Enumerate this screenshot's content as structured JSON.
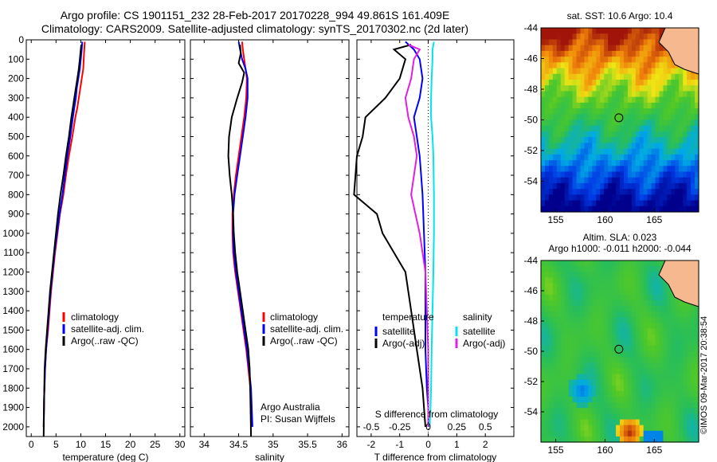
{
  "header": {
    "line1": "Argo profile: CS 1901151_232 28-Feb-2017 20170228_994 49.861S 161.409E",
    "line2": "Climatology: CARS2009. Satellite-adjusted climatology: synTS_20170302.nc (2d later)"
  },
  "colors": {
    "climatology": "#ff0000",
    "satellite": "#0000ff",
    "argo": "#000000",
    "sal_satellite": "#00e5ee",
    "sal_argo": "#e020e0",
    "land": "#f6b98f"
  },
  "chart_data": [
    {
      "type": "line",
      "name": "temperature",
      "xlabel": "temperature (deg C)",
      "ylabel": "",
      "xlim": [
        -1,
        31
      ],
      "ylim": [
        2050,
        0
      ],
      "xticks": [
        0,
        5,
        10,
        15,
        20,
        25,
        30
      ],
      "yticks": [
        0,
        100,
        200,
        300,
        400,
        500,
        600,
        700,
        800,
        900,
        1000,
        1100,
        1200,
        1300,
        1400,
        1500,
        1600,
        1700,
        1800,
        1900,
        2000
      ],
      "legend": [
        "climatology",
        "satellite-adj. clim.",
        "Argo(..raw -QC)"
      ],
      "legend_position": "lower-left",
      "series": [
        {
          "name": "climatology",
          "x": [
            10.8,
            10.7,
            10.6,
            10.5,
            10.2,
            9.9,
            9.6,
            9.3,
            8.9,
            8.3,
            7.6,
            7.0,
            6.5,
            5.8,
            5.3,
            4.8,
            4.4,
            4.0,
            3.7,
            3.4,
            3.0,
            2.8,
            2.6,
            2.5
          ],
          "y": [
            10,
            50,
            100,
            150,
            200,
            250,
            300,
            350,
            400,
            500,
            600,
            700,
            800,
            900,
            1000,
            1100,
            1200,
            1300,
            1400,
            1500,
            1600,
            1700,
            1850,
            2000
          ]
        },
        {
          "name": "satellite-adj. clim.",
          "x": [
            10.3,
            10.2,
            10.0,
            9.8,
            9.5,
            9.2,
            9.0,
            8.7,
            8.4,
            7.9,
            7.3,
            6.8,
            6.3,
            5.7,
            5.2,
            4.7,
            4.3,
            3.9,
            3.6,
            3.3,
            3.0,
            2.8,
            2.6,
            2.5
          ],
          "y": [
            10,
            50,
            100,
            150,
            200,
            250,
            300,
            350,
            400,
            500,
            600,
            700,
            800,
            900,
            1000,
            1100,
            1200,
            1300,
            1400,
            1500,
            1600,
            1700,
            1850,
            2000
          ]
        },
        {
          "name": "Argo(..raw -QC)",
          "x": [
            10.1,
            10.0,
            9.8,
            9.6,
            9.3,
            9.0,
            8.7,
            8.4,
            8.1,
            7.6,
            7.0,
            6.5,
            5.9,
            5.4,
            5.0,
            4.6,
            4.2,
            3.8,
            3.5,
            3.2,
            2.9,
            2.7,
            2.6,
            2.5
          ],
          "y": [
            25,
            50,
            100,
            150,
            200,
            250,
            300,
            350,
            400,
            500,
            600,
            700,
            800,
            900,
            1000,
            1100,
            1200,
            1300,
            1400,
            1500,
            1600,
            1700,
            1850,
            2050
          ]
        }
      ]
    },
    {
      "type": "line",
      "name": "salinity",
      "xlabel": "salinity",
      "ylabel": "",
      "xlim": [
        33.8,
        36.1
      ],
      "ylim": [
        2050,
        0
      ],
      "xticks": [
        34,
        34.5,
        35,
        35.5,
        36
      ],
      "legend": [
        "climatology",
        "satellite-adj. clim.",
        "Argo(..raw -QC)"
      ],
      "legend_position": "lower-right",
      "annotation": [
        "Argo Australia",
        "PI: Susan Wijffels"
      ],
      "series": [
        {
          "name": "climatology",
          "x": [
            34.55,
            34.56,
            34.58,
            34.6,
            34.62,
            34.61,
            34.58,
            34.54,
            34.5,
            34.46,
            34.43,
            34.41,
            34.41,
            34.42,
            34.45,
            34.49,
            34.53,
            34.57,
            34.61,
            34.64,
            34.67,
            34.68,
            34.69
          ],
          "y": [
            10,
            50,
            100,
            150,
            200,
            300,
            400,
            500,
            600,
            700,
            800,
            900,
            1000,
            1100,
            1200,
            1300,
            1400,
            1500,
            1600,
            1700,
            1800,
            1900,
            2000
          ]
        },
        {
          "name": "satellite-adj. clim.",
          "x": [
            34.5,
            34.52,
            34.55,
            34.6,
            34.63,
            34.63,
            34.6,
            34.56,
            34.52,
            34.48,
            34.44,
            34.42,
            34.42,
            34.43,
            34.46,
            34.5,
            34.54,
            34.58,
            34.62,
            34.65,
            34.68,
            34.69,
            34.7
          ],
          "y": [
            10,
            50,
            100,
            150,
            200,
            300,
            400,
            500,
            600,
            700,
            800,
            900,
            1000,
            1100,
            1200,
            1300,
            1400,
            1500,
            1600,
            1700,
            1800,
            1900,
            2000
          ]
        },
        {
          "name": "Argo(..raw -QC)",
          "x": [
            34.52,
            34.53,
            34.5,
            34.58,
            34.55,
            34.48,
            34.4,
            34.36,
            34.35,
            34.37,
            34.4,
            34.42,
            34.43,
            34.45,
            34.48,
            34.52,
            34.56,
            34.6,
            34.64,
            34.66,
            34.67,
            34.68
          ],
          "y": [
            25,
            70,
            120,
            170,
            220,
            300,
            400,
            500,
            600,
            700,
            800,
            900,
            1000,
            1100,
            1200,
            1300,
            1400,
            1500,
            1600,
            1700,
            1850,
            2050
          ]
        }
      ]
    },
    {
      "type": "line",
      "name": "differences",
      "xlabel": "T difference from climatology",
      "xlabel2": "S difference from climatology",
      "xlim": [
        -2.5,
        3
      ],
      "ylim": [
        2050,
        0
      ],
      "xticks": [
        -2,
        -1,
        0,
        1,
        2
      ],
      "sticks_labels": [
        "-0.5",
        "-0.25",
        "0",
        "0.25",
        "0.5"
      ],
      "legend_titles": [
        "temperature",
        "salinity"
      ],
      "legend": [
        "satellite",
        "Argo(-adj)",
        "satellite",
        "Argo(-adj)"
      ],
      "series": [
        {
          "name": "temperature satellite",
          "x": [
            -0.8,
            -0.5,
            -0.3,
            -0.2,
            -0.3,
            -0.5,
            -0.4,
            -0.3,
            -0.2,
            -0.15,
            -0.1,
            -0.1,
            -0.1,
            -0.05,
            0,
            0
          ],
          "y": [
            10,
            50,
            100,
            200,
            300,
            400,
            500,
            600,
            800,
            1000,
            1200,
            1400,
            1600,
            1800,
            1900,
            2000
          ]
        },
        {
          "name": "temperature Argo(-adj)",
          "x": [
            -0.6,
            -1.2,
            -0.8,
            -1.0,
            -1.5,
            -2.2,
            -2.3,
            -2.5,
            -2.6,
            -1.8,
            -1.6,
            -0.8,
            -0.6,
            -0.4,
            -0.2,
            -0.1
          ],
          "y": [
            25,
            50,
            100,
            200,
            300,
            400,
            500,
            600,
            800,
            900,
            1000,
            1200,
            1400,
            1600,
            1800,
            2000
          ]
        },
        {
          "name": "salinity satellite",
          "x": [
            0.2,
            0.15,
            0.15,
            0.12,
            0.1,
            0.1,
            0.15,
            0.18,
            0.2,
            0.2,
            0.18,
            0.15,
            0.12,
            0.1,
            0.08,
            0.05
          ],
          "y": [
            10,
            50,
            100,
            200,
            300,
            400,
            500,
            600,
            800,
            1000,
            1200,
            1400,
            1600,
            1800,
            1900,
            2000
          ]
        },
        {
          "name": "salinity Argo(-adj)",
          "x": [
            -0.7,
            -0.3,
            -0.5,
            -0.6,
            -0.8,
            -0.7,
            -0.5,
            -0.4,
            -0.6,
            -0.3,
            -0.1,
            -0.05,
            0,
            0,
            0,
            0
          ],
          "y": [
            25,
            50,
            100,
            200,
            300,
            400,
            500,
            600,
            800,
            1000,
            1200,
            1400,
            1600,
            1800,
            1900,
            2000
          ]
        }
      ]
    },
    {
      "type": "heatmap",
      "name": "sst_map",
      "title": "sat. SST: 10.6 Argo: 10.4",
      "xticks": [
        155,
        160,
        165
      ],
      "yticks": [
        -44,
        -46,
        -48,
        -50,
        -52,
        -54
      ],
      "xlim": [
        153.5,
        169.5
      ],
      "ylim": [
        -56,
        -44
      ],
      "marker": {
        "lon": 161.409,
        "lat": -49.861
      }
    },
    {
      "type": "heatmap",
      "name": "sla_map",
      "title1": "Altim. SLA: 0.023",
      "title2": "Argo h1000: -0.011 h2000: -0.044",
      "xticks": [
        155,
        160,
        165
      ],
      "yticks": [
        -44,
        -46,
        -48,
        -50,
        -52,
        -54
      ],
      "xlim": [
        153.5,
        169.5
      ],
      "ylim": [
        -56,
        -44
      ],
      "marker": {
        "lon": 161.409,
        "lat": -49.861
      }
    }
  ],
  "legend_labels": {
    "climatology": "climatology",
    "satellite_adj": "satellite-adj. clim.",
    "argo_raw": "Argo(..raw -QC)",
    "temperature": "temperature",
    "salinity": "salinity",
    "satellite": "satellite",
    "argo_adj": "Argo(-adj)"
  },
  "annotation": {
    "line1": "Argo Australia",
    "line2": "PI: Susan Wijffels"
  },
  "watermark": "©IMOS 09-Mar-2017 20:38:54"
}
